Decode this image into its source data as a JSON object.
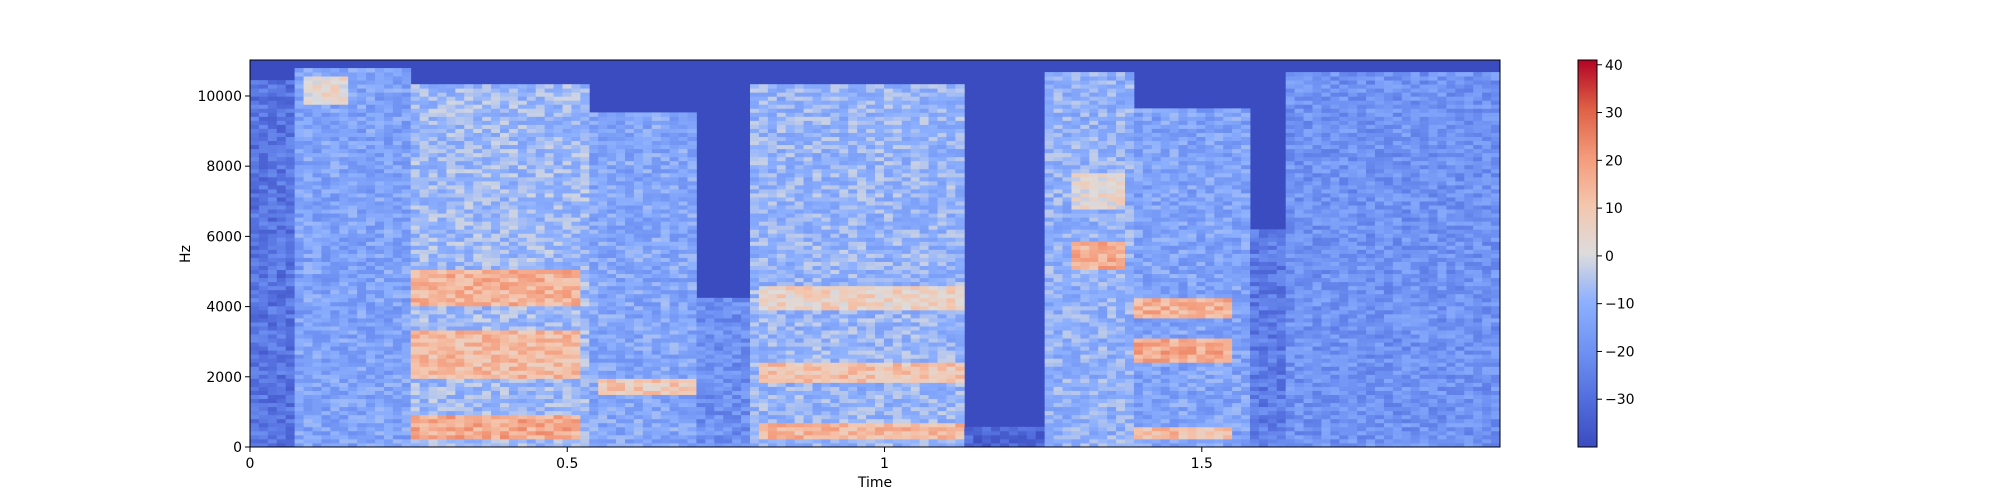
{
  "chart_data": {
    "type": "heatmap",
    "title": "",
    "xlabel": "Time",
    "ylabel": "Hz",
    "xlim": [
      0,
      1.97
    ],
    "ylim": [
      0,
      11025
    ],
    "xticks": [
      {
        "value": 0,
        "label": "0"
      },
      {
        "value": 0.5,
        "label": "0.5"
      },
      {
        "value": 1,
        "label": "1"
      },
      {
        "value": 1.5,
        "label": "1.5"
      }
    ],
    "yticks": [
      {
        "value": 0,
        "label": "0"
      },
      {
        "value": 2000,
        "label": "2000"
      },
      {
        "value": 4000,
        "label": "4000"
      },
      {
        "value": 6000,
        "label": "6000"
      },
      {
        "value": 8000,
        "label": "8000"
      },
      {
        "value": 10000,
        "label": "10000"
      }
    ],
    "colorbar": {
      "min": -40,
      "max": 41,
      "colormap": "coolwarm",
      "ticks": [
        {
          "value": 40,
          "label": "40"
        },
        {
          "value": 30,
          "label": "30"
        },
        {
          "value": 20,
          "label": "20"
        },
        {
          "value": 10,
          "label": "10"
        },
        {
          "value": 0,
          "label": "0"
        },
        {
          "value": -10,
          "label": "−10"
        },
        {
          "value": -20,
          "label": "−20"
        },
        {
          "value": -30,
          "label": "−30"
        }
      ]
    },
    "segments": [
      {
        "t0": 0.0,
        "t1": 0.07,
        "fmax": 10500,
        "level": -28
      },
      {
        "t0": 0.07,
        "t1": 0.25,
        "fmax": 10800,
        "level": -14
      },
      {
        "t0": 0.25,
        "t1": 0.53,
        "fmax": 10300,
        "level": -8
      },
      {
        "t0": 0.53,
        "t1": 0.7,
        "fmax": 9500,
        "level": -13
      },
      {
        "t0": 0.7,
        "t1": 0.79,
        "fmax": 4200,
        "level": -20
      },
      {
        "t0": 0.79,
        "t1": 1.12,
        "fmax": 10300,
        "level": -9
      },
      {
        "t0": 1.12,
        "t1": 1.25,
        "fmax": 600,
        "level": -32
      },
      {
        "t0": 1.25,
        "t1": 1.39,
        "fmax": 10700,
        "level": -10
      },
      {
        "t0": 1.39,
        "t1": 1.58,
        "fmax": 9700,
        "level": -14
      },
      {
        "t0": 1.58,
        "t1": 1.63,
        "fmax": 6200,
        "level": -26
      },
      {
        "t0": 1.63,
        "t1": 1.97,
        "fmax": 10700,
        "level": -19
      }
    ],
    "hotspots": [
      {
        "t0": 0.26,
        "t1": 0.52,
        "f0": 4000,
        "f1": 5000,
        "level": 15
      },
      {
        "t0": 0.26,
        "t1": 0.52,
        "f0": 2000,
        "f1": 3300,
        "level": 13
      },
      {
        "t0": 0.26,
        "t1": 0.52,
        "f0": 200,
        "f1": 900,
        "level": 17
      },
      {
        "t0": 0.55,
        "t1": 0.7,
        "f0": 1500,
        "f1": 2000,
        "level": 9
      },
      {
        "t0": 0.8,
        "t1": 1.12,
        "f0": 3900,
        "f1": 4600,
        "level": 6
      },
      {
        "t0": 0.8,
        "t1": 1.12,
        "f0": 1800,
        "f1": 2400,
        "level": 11
      },
      {
        "t0": 0.8,
        "t1": 1.12,
        "f0": 200,
        "f1": 700,
        "level": 14
      },
      {
        "t0": 1.3,
        "t1": 1.38,
        "f0": 5100,
        "f1": 5900,
        "level": 16
      },
      {
        "t0": 1.3,
        "t1": 1.38,
        "f0": 6800,
        "f1": 7800,
        "level": 3
      },
      {
        "t0": 1.4,
        "t1": 1.55,
        "f0": 3700,
        "f1": 4300,
        "level": 15
      },
      {
        "t0": 1.4,
        "t1": 1.55,
        "f0": 2400,
        "f1": 3100,
        "level": 17
      },
      {
        "t0": 1.4,
        "t1": 1.55,
        "f0": 200,
        "f1": 600,
        "level": 13
      },
      {
        "t0": 0.08,
        "t1": 0.15,
        "f0": 9800,
        "f1": 10600,
        "level": 3
      }
    ]
  }
}
